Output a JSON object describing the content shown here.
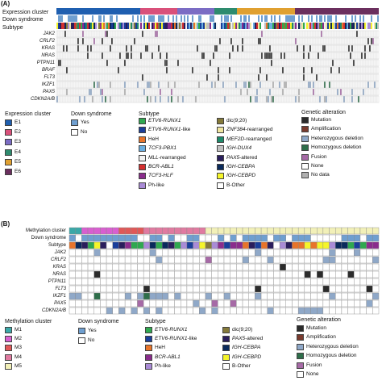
{
  "panel_a": {
    "label": "(A)",
    "header_rows": [
      "Expression cluster",
      "Down syndrome",
      "Subtype"
    ],
    "genes": [
      "JAK2",
      "CRLF2",
      "KRAS",
      "NRAS",
      "PTPN11",
      "BRAF",
      "FLT3",
      "IKZF1",
      "PAX5",
      "CDKN2A/B"
    ]
  },
  "panel_b": {
    "label": "(B)",
    "header_rows": [
      "Methylation cluster",
      "Down syndrome",
      "Subtype"
    ],
    "genes": [
      "JAK2",
      "CRLF2",
      "KRAS",
      "NRAS",
      "PTPN11",
      "FLT3",
      "IKZF1",
      "PAX5",
      "CDKN2A/B"
    ]
  },
  "legend_a": {
    "expression": {
      "title": "Expression cluster",
      "items": [
        {
          "label": "E1",
          "color": "#1f5fb0"
        },
        {
          "label": "E2",
          "color": "#d9507a"
        },
        {
          "label": "E3",
          "color": "#7b6cc4"
        },
        {
          "label": "E4",
          "color": "#2e8b6e"
        },
        {
          "label": "E5",
          "color": "#e0a030"
        },
        {
          "label": "E6",
          "color": "#6b2f5e"
        }
      ]
    },
    "down": {
      "title": "Down syndrome",
      "items": [
        {
          "label": "Yes",
          "color": "#6f9fd0"
        },
        {
          "label": "No",
          "color": "#ffffff"
        }
      ]
    },
    "subtype": {
      "title": "Subtype",
      "col1": [
        {
          "label": "ETV6-RUNX1",
          "italic": "ETV6-RUNX1",
          "rest": "",
          "color": "#2fa84f"
        },
        {
          "label": "ETV6-RUNX1-like",
          "italic": "ETV6-RUNX1",
          "rest": "-like",
          "color": "#1a3e9a"
        },
        {
          "label": "HeH",
          "italic": "",
          "rest": "HeH",
          "color": "#e8742a"
        },
        {
          "label": "TCF3-PBX1",
          "italic": "TCF3-PBX1",
          "rest": "",
          "color": "#6aaee0"
        },
        {
          "label": "MLL-rearranged",
          "italic": "MLL",
          "rest": "-rearranged",
          "color": "#f2f2f2"
        },
        {
          "label": "BCR-ABL1",
          "italic": "BCR-ABL1",
          "rest": "",
          "color": "#d42f2f"
        },
        {
          "label": "TCF3-HLF",
          "italic": "TCF3-HLF",
          "rest": "",
          "color": "#8a2c8c"
        },
        {
          "label": "Ph-like",
          "italic": "",
          "rest": "Ph-like",
          "color": "#a98bd6"
        }
      ],
      "col2": [
        {
          "label": "dic(9;20)",
          "italic": "",
          "rest": "dic(9;20)",
          "color": "#857a3a"
        },
        {
          "label": "ZNF384-rearranged",
          "italic": "ZNF384",
          "rest": "-rearranged",
          "color": "#f0e6a0"
        },
        {
          "label": "MEF2D-rearranged",
          "italic": "MEF2D",
          "rest": "-rearranged",
          "color": "#1f8a6a"
        },
        {
          "label": "IGH-DUX4",
          "italic": "IGH-DUX4",
          "rest": "",
          "color": "#c0c0c0"
        },
        {
          "label": "PAX5-altered",
          "italic": "PAX5",
          "rest": "-altered",
          "color": "#2a1e5c"
        },
        {
          "label": "IGH-CEBPA",
          "italic": "IGH-CEBPA",
          "rest": "",
          "color": "#0a2a5c"
        },
        {
          "label": "IGH-CEBPD",
          "italic": "IGH-CEBPD",
          "rest": "",
          "color": "#f5f52a"
        },
        {
          "label": "B-Other",
          "italic": "",
          "rest": "B-Other",
          "color": "#ffffff"
        }
      ]
    },
    "genetic": {
      "title": "Genetic alteration",
      "items": [
        {
          "label": "Mutation",
          "color": "#2b2b2b"
        },
        {
          "label": "Amplification",
          "color": "#7a3b2e"
        },
        {
          "label": "Heterozygous deletion",
          "color": "#8fa8c8"
        },
        {
          "label": "Homozygous deletion",
          "color": "#2e6e4a"
        },
        {
          "label": "Fusion",
          "color": "#a66aa6"
        },
        {
          "label": "None",
          "color": "#ffffff"
        },
        {
          "label": "No data",
          "color": "#b0b0b0"
        }
      ]
    }
  },
  "legend_b": {
    "methylation": {
      "title": "Methylation cluster",
      "items": [
        {
          "label": "M1",
          "color": "#3aa8a8"
        },
        {
          "label": "M2",
          "color": "#d85fd0"
        },
        {
          "label": "M3",
          "color": "#e05858"
        },
        {
          "label": "M4",
          "color": "#e07aa0"
        },
        {
          "label": "M5",
          "color": "#f2f0b8"
        }
      ]
    },
    "down": {
      "title": "Down syndrome",
      "items": [
        {
          "label": "Yes",
          "color": "#6f9fd0"
        },
        {
          "label": "No",
          "color": "#ffffff"
        }
      ]
    },
    "subtype": {
      "title": "Subtype",
      "col1": [
        {
          "label": "ETV6-RUNX1",
          "italic": "ETV6-RUNX1",
          "rest": "",
          "color": "#2fa84f"
        },
        {
          "label": "ETV6-RUNX1-like",
          "italic": "ETV6-RUNX1",
          "rest": "-like",
          "color": "#1a3e9a"
        },
        {
          "label": "HeH",
          "italic": "",
          "rest": "HeH",
          "color": "#e8742a"
        },
        {
          "label": "BCR-ABL1",
          "italic": "BCR-ABL1",
          "rest": "",
          "color": "#8a2c8c"
        },
        {
          "label": "Ph-like",
          "italic": "",
          "rest": "Ph-like",
          "color": "#a98bd6"
        }
      ],
      "col2": [
        {
          "label": "dic(9;20)",
          "italic": "",
          "rest": "dic(9;20)",
          "color": "#857a3a"
        },
        {
          "label": "PAX5-altered",
          "italic": "PAX5",
          "rest": "-altered",
          "color": "#2a1e5c"
        },
        {
          "label": "IGH-CEBPA",
          "italic": "IGH-CEBPA",
          "rest": "",
          "color": "#0a2a5c"
        },
        {
          "label": "IGH-CEBPD",
          "italic": "IGH-CEBPD",
          "rest": "",
          "color": "#f5f52a"
        },
        {
          "label": "B-Other",
          "italic": "",
          "rest": "B-Other",
          "color": "#ffffff"
        }
      ]
    },
    "genetic": {
      "title": "Genetic alteration",
      "items": [
        {
          "label": "Mutation",
          "color": "#2b2b2b"
        },
        {
          "label": "Amplification",
          "color": "#7a3b2e"
        },
        {
          "label": "Heterozygous deletion",
          "color": "#8fa8c8"
        },
        {
          "label": "Homozygous deletion",
          "color": "#2e6e4a"
        },
        {
          "label": "Fusion",
          "color": "#a66aa6"
        },
        {
          "label": "None",
          "color": "#ffffff"
        }
      ]
    }
  }
}
